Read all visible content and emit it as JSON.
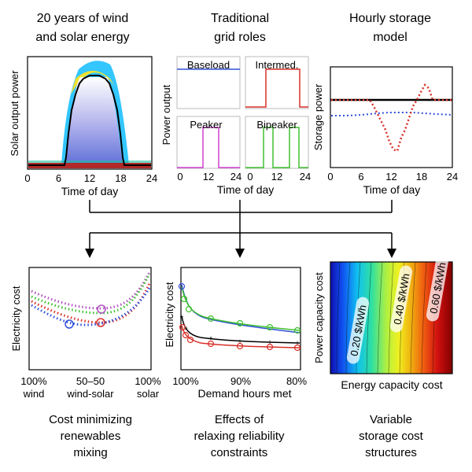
{
  "panels_top": {
    "wind_solar": {
      "title_line1": "20 years of wind",
      "title_line2": "and solar energy",
      "ylabel": "Solar output power",
      "xlabel": "Time of day",
      "xticks": [
        "0",
        "6",
        "12",
        "18",
        "24"
      ]
    },
    "grid_roles": {
      "title_line1": "Traditional",
      "title_line2": "grid roles",
      "ylabel": "Power output",
      "xlabel": "Time of day",
      "xticks": [
        "0",
        "12",
        "24"
      ],
      "subplots": [
        "Baseload",
        "Intermed.",
        "Peaker",
        "Bipeaker"
      ]
    },
    "storage": {
      "title_line1": "Hourly storage",
      "title_line2": "model",
      "ylabel": "Storage power",
      "xlabel": "Time of day",
      "xticks": [
        "0",
        "6",
        "12",
        "18",
        "24"
      ]
    }
  },
  "panels_bottom": {
    "mixing": {
      "ylabel": "Electricity cost",
      "xticks_line1": [
        "100%",
        "50–50",
        "100%"
      ],
      "xticks_line2": [
        "wind",
        "wind-solar",
        "solar"
      ],
      "caption_line1": "Cost minimizing",
      "caption_line2": "renewables",
      "caption_line3": "mixing"
    },
    "reliability": {
      "ylabel": "Electricity cost",
      "xlabel": "Demand hours met",
      "xticks": [
        "100%",
        "90%",
        "80%"
      ],
      "caption_line1": "Effects of",
      "caption_line2": "relaxing reliability",
      "caption_line3": "constraints"
    },
    "storage_cost": {
      "ylabel": "Power capacity cost",
      "xlabel": "Energy capacity cost",
      "contour_labels": [
        "0.20 $/kWh",
        "0.40 $/kWh",
        "0.60 $/kWh"
      ],
      "caption_line1": "Variable",
      "caption_line2": "storage cost",
      "caption_line3": "structures"
    }
  },
  "colors": {
    "blue": "#3050d8",
    "red": "#d83028",
    "green": "#40c030",
    "magenta": "#d040d0",
    "purple": "#b050c0",
    "black": "#000000",
    "arrow": "#000000"
  }
}
